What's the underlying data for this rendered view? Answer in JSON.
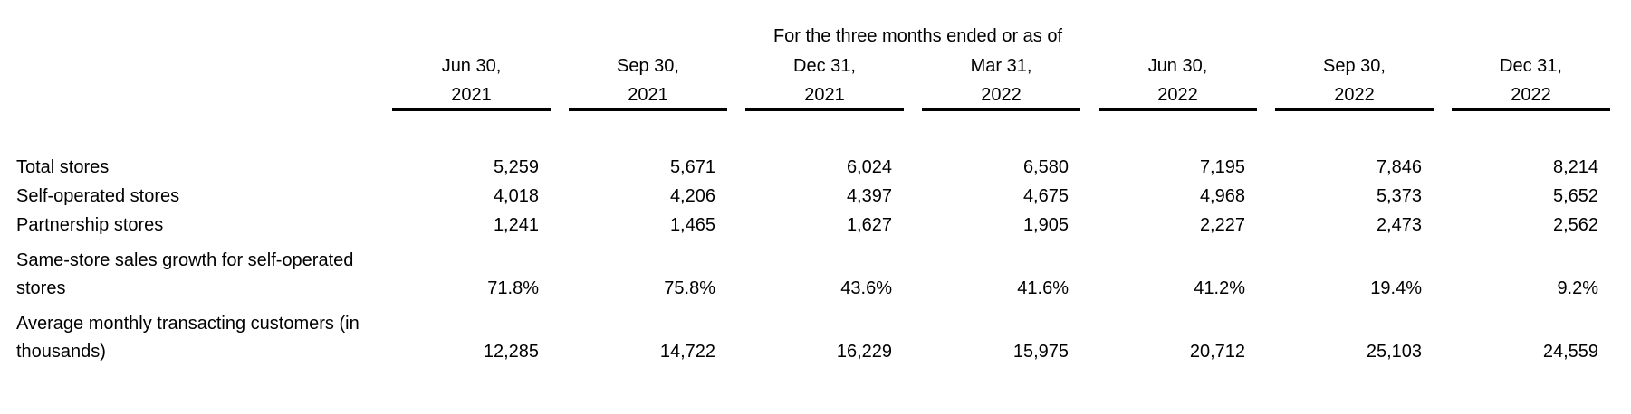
{
  "table": {
    "period_header": "For the three months ended or as of",
    "columns": [
      {
        "line1": "Jun 30,",
        "line2": "2021"
      },
      {
        "line1": "Sep 30,",
        "line2": "2021"
      },
      {
        "line1": "Dec 31,",
        "line2": "2021"
      },
      {
        "line1": "Mar 31,",
        "line2": "2022"
      },
      {
        "line1": "Jun 30,",
        "line2": "2022"
      },
      {
        "line1": "Sep 30,",
        "line2": "2022"
      },
      {
        "line1": "Dec 31,",
        "line2": "2022"
      }
    ],
    "rows": [
      {
        "label": "Total stores",
        "label_lines": [
          "Total stores"
        ],
        "values": [
          "5,259",
          "5,671",
          "6,024",
          "6,580",
          "7,195",
          "7,846",
          "8,214"
        ]
      },
      {
        "label": "Self-operated stores",
        "label_lines": [
          "Self-operated stores"
        ],
        "values": [
          "4,018",
          "4,206",
          "4,397",
          "4,675",
          "4,968",
          "5,373",
          "5,652"
        ]
      },
      {
        "label": "Partnership stores",
        "label_lines": [
          "Partnership stores"
        ],
        "values": [
          "1,241",
          "1,465",
          "1,627",
          "1,905",
          "2,227",
          "2,473",
          "2,562"
        ]
      },
      {
        "label": "Same-store sales growth for self-operated stores",
        "label_lines": [
          "Same-store sales growth for self-operated",
          "stores"
        ],
        "values": [
          "71.8%",
          "75.8%",
          "43.6%",
          "41.6%",
          "41.2%",
          "19.4%",
          "9.2%"
        ]
      },
      {
        "label": "Average monthly transacting customers (in thousands)",
        "label_lines": [
          "Average monthly transacting customers (in",
          "thousands)"
        ],
        "values": [
          "12,285",
          "14,722",
          "16,229",
          "15,975",
          "20,712",
          "25,103",
          "24,559"
        ]
      }
    ]
  },
  "colors": {
    "text": "#000000",
    "background": "#ffffff",
    "header_rule": "#000000"
  }
}
